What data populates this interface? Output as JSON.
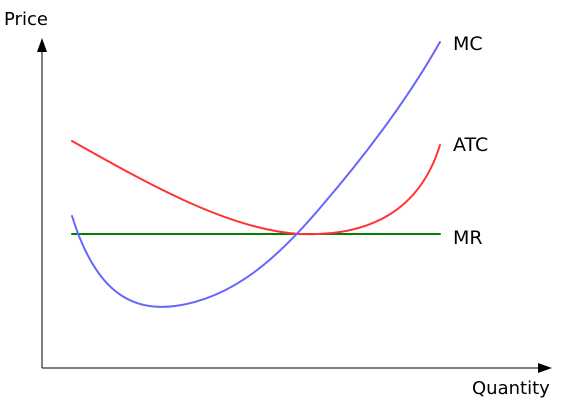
{
  "diagram": {
    "axes": {
      "y_label": "Price",
      "x_label": "Quantity"
    },
    "curves": [
      {
        "id": "mc",
        "label": "MC",
        "color": "#6666ff",
        "description_type": "marginal-cost"
      },
      {
        "id": "atc",
        "label": "ATC",
        "color": "#ff3333",
        "description_type": "average-total-cost"
      },
      {
        "id": "mr",
        "label": "MR",
        "color": "#008000",
        "description_type": "marginal-revenue"
      }
    ]
  }
}
